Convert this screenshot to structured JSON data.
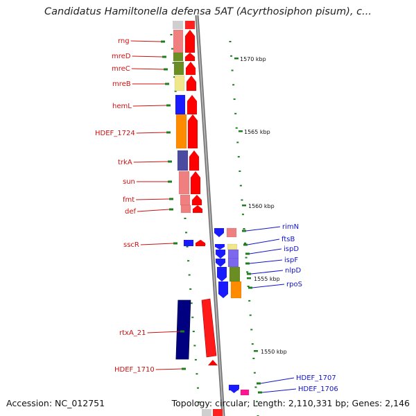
{
  "title": "Candidatus Hamiltonella defensa 5AT (Acyrthosiphon pisum), c...",
  "footer": {
    "accession": "Accession: NC_012751",
    "summary": "Topology: circular; Length: 2,110,331 bp; Genes: 2,146"
  },
  "colors": {
    "left_label": "#cc1111",
    "right_label": "#1111cc",
    "tick": "#1e7d1e",
    "backbone": "#8c8c8c"
  },
  "scale_labels": [
    "1570 kbp",
    "1565 kbp",
    "1560 kbp",
    "1555 kbp",
    "1550 kbp"
  ],
  "genes": [
    {
      "name": "rng",
      "strand": "left",
      "color": "#f08080"
    },
    {
      "name": "mreD",
      "strand": "left",
      "color": "#6b8e23"
    },
    {
      "name": "mreC",
      "strand": "left",
      "color": "#6b8e23"
    },
    {
      "name": "mreB",
      "strand": "left",
      "color": "#f0e68c"
    },
    {
      "name": "hemL",
      "strand": "left",
      "color": "#1a1aff"
    },
    {
      "name": "HDEF_1724",
      "strand": "left",
      "color": "#ff8c00"
    },
    {
      "name": "trkA",
      "strand": "left",
      "color": "#4b4ba0"
    },
    {
      "name": "sun",
      "strand": "left",
      "color": "#f08080"
    },
    {
      "name": "fmt",
      "strand": "left",
      "color": "#f08080"
    },
    {
      "name": "def",
      "strand": "left",
      "color": "#f08080"
    },
    {
      "name": "sscR",
      "strand": "left",
      "color": "#1a1aff"
    },
    {
      "name": "rtxA_21",
      "strand": "left",
      "color": "#000080"
    },
    {
      "name": "HDEF_1710",
      "strand": "left",
      "color": "#ff0000"
    },
    {
      "name": "rimN",
      "strand": "right",
      "color": "#f08080"
    },
    {
      "name": "ftsB",
      "strand": "right",
      "color": "#f0e68c"
    },
    {
      "name": "ispD",
      "strand": "right",
      "color": "#7b68ee"
    },
    {
      "name": "ispF",
      "strand": "right",
      "color": "#7b68ee"
    },
    {
      "name": "nlpD",
      "strand": "right",
      "color": "#6b8e23"
    },
    {
      "name": "rpoS",
      "strand": "right",
      "color": "#ff8c00"
    },
    {
      "name": "HDEF_1707",
      "strand": "right",
      "color": "#1a1aff"
    },
    {
      "name": "HDEF_1706",
      "strand": "right",
      "color": "#ff1493"
    }
  ]
}
